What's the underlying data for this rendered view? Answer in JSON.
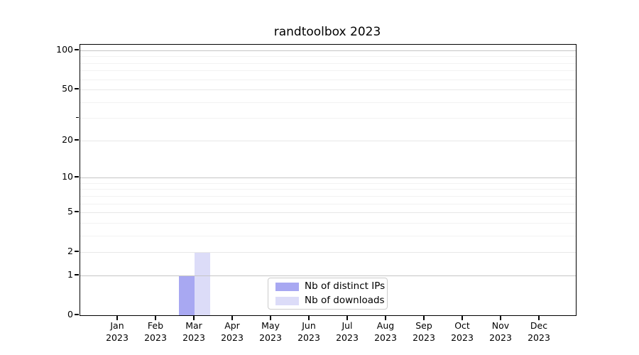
{
  "title": "randtoolbox 2023",
  "chart_data": {
    "type": "bar",
    "title": "randtoolbox 2023",
    "categories": [
      "Jan 2023",
      "Feb 2023",
      "Mar 2023",
      "Apr 2023",
      "May 2023",
      "Jun 2023",
      "Jul 2023",
      "Aug 2023",
      "Sep 2023",
      "Oct 2023",
      "Nov 2023",
      "Dec 2023"
    ],
    "months": [
      "Jan",
      "Feb",
      "Mar",
      "Apr",
      "May",
      "Jun",
      "Jul",
      "Aug",
      "Sep",
      "Oct",
      "Nov",
      "Dec"
    ],
    "year": "2023",
    "series": [
      {
        "name": "Nb of distinct IPs",
        "color": "#a8a8f2",
        "values": [
          0,
          0,
          1,
          0,
          0,
          0,
          0,
          0,
          0,
          0,
          0,
          0
        ]
      },
      {
        "name": "Nb of downloads",
        "color": "#dcdcf8",
        "values": [
          0,
          0,
          2,
          0,
          0,
          0,
          0,
          0,
          0,
          0,
          0,
          0
        ]
      }
    ],
    "xlabel": "",
    "ylabel": "",
    "y_scale": "log1p",
    "ylim": [
      0,
      110
    ],
    "y_ticks": [
      0,
      1,
      2,
      5,
      10,
      20,
      50,
      100
    ],
    "y_minor_ticks": [
      3,
      4,
      6,
      7,
      8,
      9,
      30,
      40,
      60,
      70,
      80,
      90
    ],
    "grid": "horizontal",
    "legend_position": "lower-center-inside",
    "grid_colors": {
      "major": "#c5c5c5",
      "mid": "#e8e8e8",
      "minor": "#f2f2f2"
    }
  },
  "legend": {
    "items": [
      {
        "label": "Nb of distinct IPs"
      },
      {
        "label": "Nb of downloads"
      }
    ]
  }
}
